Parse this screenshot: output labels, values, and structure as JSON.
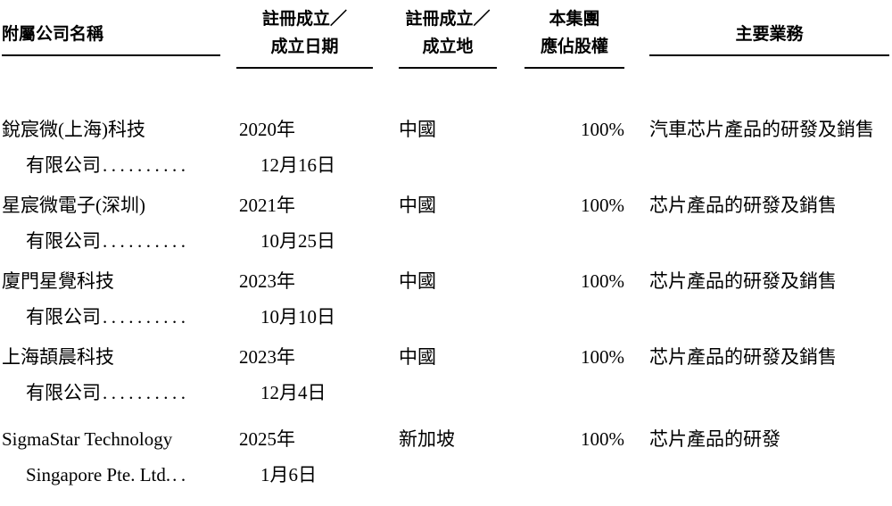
{
  "table": {
    "headers": {
      "name": "附屬公司名稱",
      "date_line1": "註冊成立／",
      "date_line2": "成立日期",
      "place_line1": "註冊成立／",
      "place_line2": "成立地",
      "equity_line1": "本集團",
      "equity_line2": "應佔股權",
      "business": "主要業務"
    },
    "rows": [
      {
        "name_line1": "銳宸微(上海)科技",
        "name_line2": "有限公司",
        "name_dots": "..........",
        "date_line1": "2020年",
        "date_line2": "12月16日",
        "place": "中國",
        "equity": "100%",
        "business": "汽車芯片產品的研發及銷售"
      },
      {
        "name_line1": "星宸微電子(深圳)",
        "name_line2": "有限公司",
        "name_dots": "..........",
        "date_line1": "2021年",
        "date_line2": "10月25日",
        "place": "中國",
        "equity": "100%",
        "business": "芯片產品的研發及銷售"
      },
      {
        "name_line1": "廈門星覺科技",
        "name_line2": "有限公司",
        "name_dots": "..........",
        "date_line1": "2023年",
        "date_line2": "10月10日",
        "place": "中國",
        "equity": "100%",
        "business": "芯片產品的研發及銷售"
      },
      {
        "name_line1": "上海頡晨科技",
        "name_line2": "有限公司",
        "name_dots": "..........",
        "date_line1": "2023年",
        "date_line2": "12月4日",
        "place": "中國",
        "equity": "100%",
        "business": "芯片產品的研發及銷售"
      },
      {
        "name_line1": "SigmaStar Technology",
        "name_line2": "Singapore Pte. Ltd.",
        "name_dots": "..",
        "date_line1": "2025年",
        "date_line2": "1月6日",
        "place": "新加坡",
        "equity": "100%",
        "business": "芯片產品的研發"
      }
    ]
  }
}
